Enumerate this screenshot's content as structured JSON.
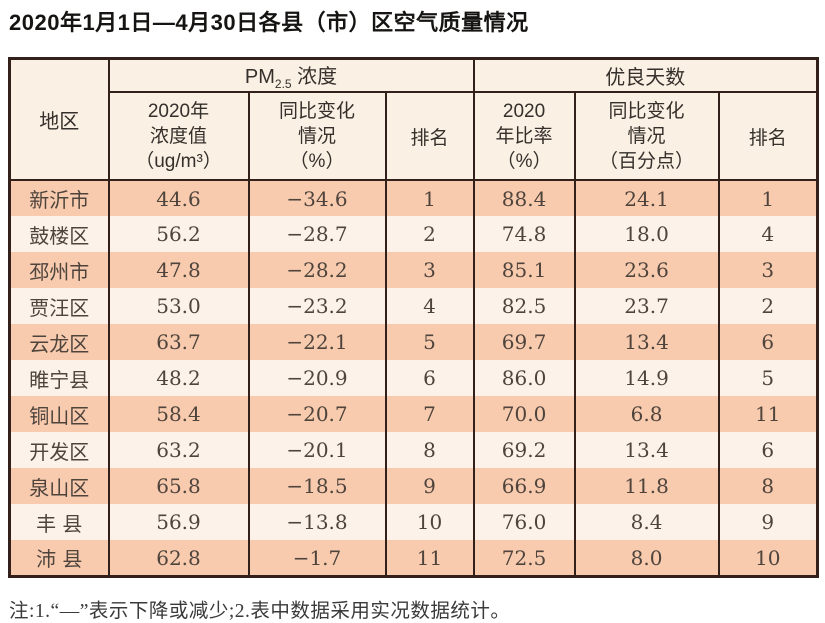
{
  "title": "2020年1月1日—4月30日各县（市）区空气质量情况",
  "note": "注:1.“—”表示下降或减少;2.表中数据采用实况数据统计。",
  "colors": {
    "row_salmon": "#f8caae",
    "row_light": "#fdf2e9",
    "header_bg": "#faf0e4",
    "border": "#33201a"
  },
  "table": {
    "header": {
      "region": "地区",
      "pm25_group": {
        "prefix": "PM",
        "sub": "2.5",
        "suffix": " 浓度"
      },
      "good_days_group": "优良天数",
      "pm25_value_lines": [
        "2020年",
        "浓度值",
        "（ug/m³）"
      ],
      "pm25_change_lines": [
        "同比变化",
        "情况",
        "（%）"
      ],
      "pm25_rank": "排名",
      "rate_lines": [
        "2020",
        "年比率",
        "（%）"
      ],
      "rate_change_lines": [
        "同比变化",
        "情况",
        "（百分点）"
      ],
      "good_days_rank": "排名"
    },
    "rows": [
      [
        "新沂市",
        "44.6",
        "−34.6",
        "1",
        "88.4",
        "24.1",
        "1"
      ],
      [
        "鼓楼区",
        "56.2",
        "−28.7",
        "2",
        "74.8",
        "18.0",
        "4"
      ],
      [
        "邳州市",
        "47.8",
        "−28.2",
        "3",
        "85.1",
        "23.6",
        "3"
      ],
      [
        "贾汪区",
        "53.0",
        "−23.2",
        "4",
        "82.5",
        "23.7",
        "2"
      ],
      [
        "云龙区",
        "63.7",
        "−22.1",
        "5",
        "69.7",
        "13.4",
        "6"
      ],
      [
        "睢宁县",
        "48.2",
        "−20.9",
        "6",
        "86.0",
        "14.9",
        "5"
      ],
      [
        "铜山区",
        "58.4",
        "−20.7",
        "7",
        "70.0",
        "6.8",
        "11"
      ],
      [
        "开发区",
        "63.2",
        "−20.1",
        "8",
        "69.2",
        "13.4",
        "6"
      ],
      [
        "泉山区",
        "65.8",
        "−18.5",
        "9",
        "66.9",
        "11.8",
        "8"
      ],
      [
        "丰 县",
        "56.9",
        "−13.8",
        "10",
        "76.0",
        "8.4",
        "9"
      ],
      [
        "沛 县",
        "62.8",
        "−1.7",
        "11",
        "72.5",
        "8.0",
        "10"
      ]
    ]
  }
}
